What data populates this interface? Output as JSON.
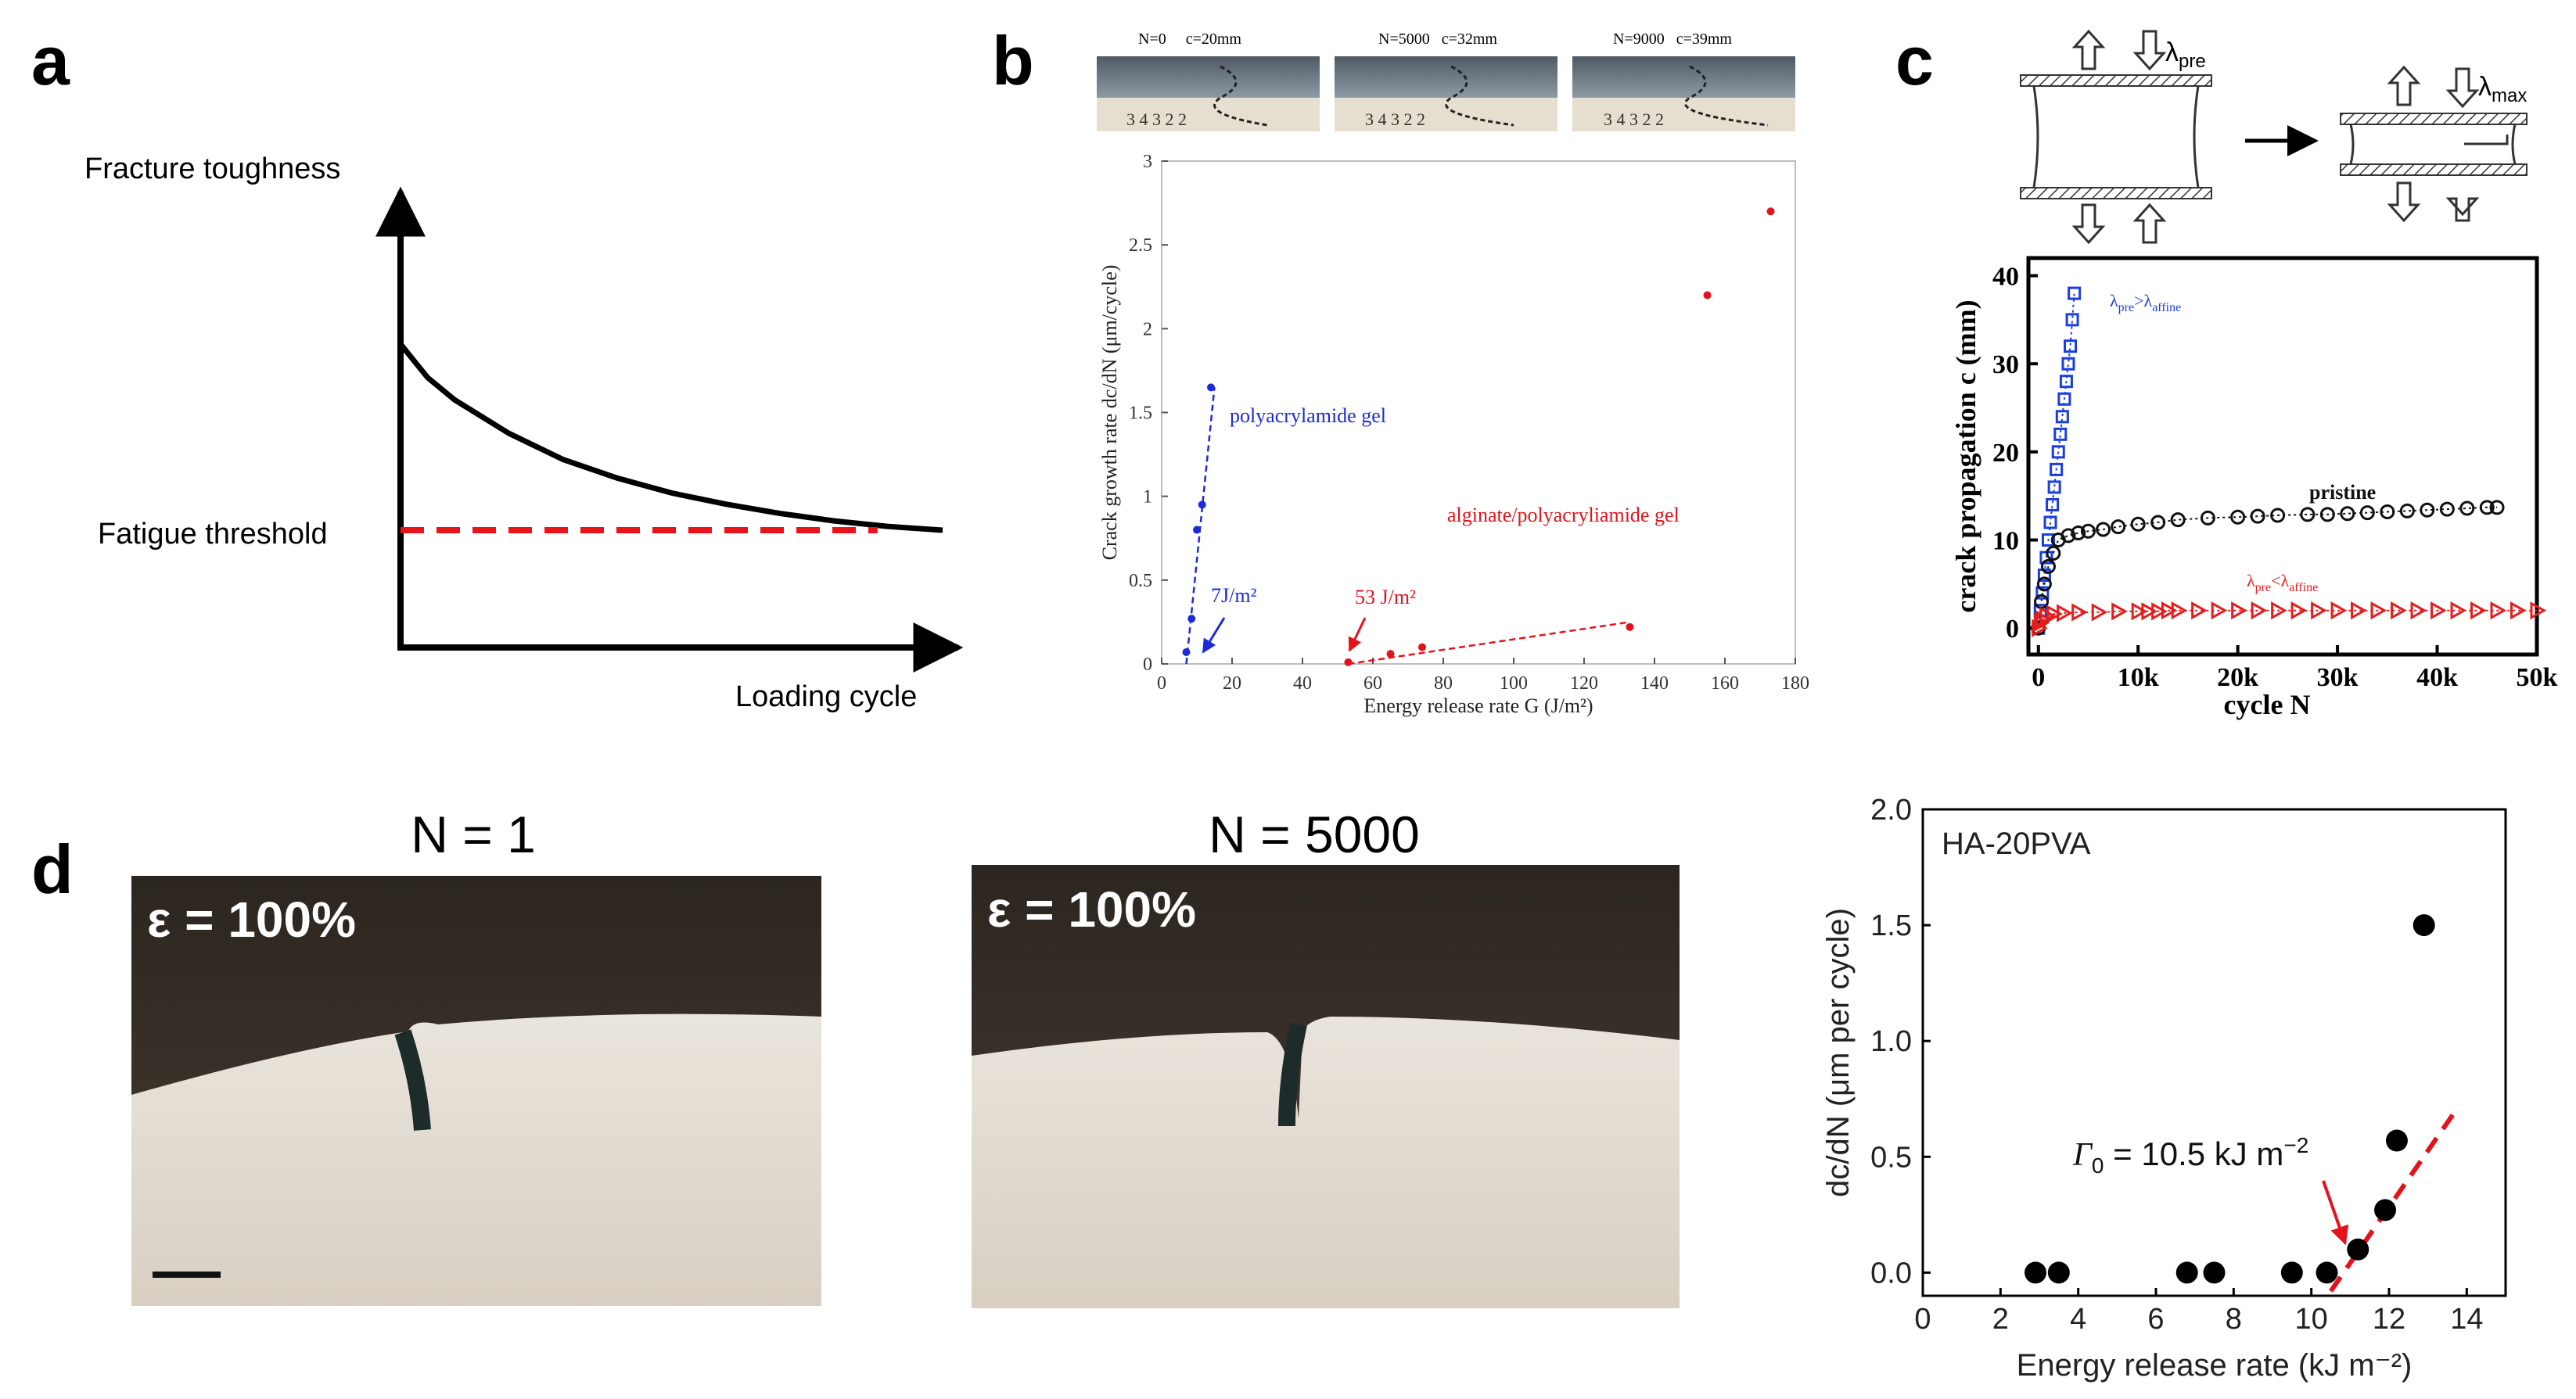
{
  "panels": {
    "a": {
      "letter": "a",
      "y_axis_label": "Fracture toughness",
      "x_axis_label": "Loading cycle",
      "threshold_label": "Fatigue threshold",
      "colors": {
        "curve": "#000000",
        "threshold": "#e8141a"
      }
    },
    "b": {
      "letter": "b",
      "photo_captions": [
        "N=0     c=20mm",
        "N=5000   c=32mm",
        "N=9000   c=39mm"
      ],
      "annotations": {
        "polyacrylamide": "polyacrylamide gel",
        "alginate": "alginate/polyacryliamide gel",
        "threshold_blue": "7J/m²",
        "threshold_red": "53 J/m²"
      },
      "colors": {
        "blue": "#1d2bd6",
        "red": "#e3121b"
      }
    },
    "c": {
      "letter": "c",
      "schematic": {
        "lambda_pre": "λpre",
        "lambda_max": "λmax"
      },
      "legend": {
        "blue": "λpre>λaffine",
        "black": "pristine",
        "red": "λpre<λaffine"
      },
      "colors": {
        "blue": "#1b3de0",
        "black": "#111111",
        "red": "#e51d1d"
      }
    },
    "d": {
      "letter": "d",
      "photo_titles": [
        "N = 1",
        "N = 5000"
      ],
      "strain_labels": [
        "ε = 100%",
        "ε = 100%"
      ],
      "inset_label": "HA-20PVA",
      "annotation": "Γ0 = 10.5 kJ m⁻²",
      "colors": {
        "points": "#000000",
        "fit": "#e3121b",
        "arrow": "#e3121b"
      }
    }
  },
  "chart_data": [
    {
      "id": "panel-a",
      "type": "line",
      "title": "",
      "xlabel": "Loading cycle",
      "ylabel": "Fracture toughness",
      "series": [
        {
          "name": "fracture-toughness",
          "x": [
            0,
            0.05,
            0.1,
            0.2,
            0.3,
            0.4,
            0.5,
            0.6,
            0.7,
            0.8,
            0.9,
            1.0
          ],
          "y": [
            1.0,
            0.82,
            0.7,
            0.52,
            0.38,
            0.28,
            0.2,
            0.14,
            0.09,
            0.05,
            0.02,
            0.0
          ]
        },
        {
          "name": "fatigue-threshold",
          "x": [
            0,
            0.88
          ],
          "y": [
            0,
            0
          ]
        }
      ],
      "grid": false
    },
    {
      "id": "panel-b",
      "type": "scatter",
      "title": "",
      "xlabel": "Energy release rate G (J/m²)",
      "ylabel": "Crack growth rate dc/dN (μm/cycle)",
      "xlim": [
        0,
        180
      ],
      "ylim": [
        0,
        3
      ],
      "xticks": [
        0,
        20,
        40,
        60,
        80,
        100,
        120,
        140,
        160,
        180
      ],
      "yticks": [
        0,
        0.5,
        1,
        1.5,
        2,
        2.5,
        3
      ],
      "series": [
        {
          "name": "polyacrylamide gel",
          "x": [
            7,
            8.5,
            10,
            11.5,
            14
          ],
          "y": [
            0.07,
            0.27,
            0.8,
            0.95,
            1.65
          ]
        },
        {
          "name": "alginate/polyacryliamide gel",
          "x": [
            53,
            65,
            74,
            133,
            155,
            173
          ],
          "y": [
            0.01,
            0.06,
            0.1,
            0.22,
            2.2,
            2.7
          ]
        }
      ],
      "fits": [
        {
          "name": "polyacrylamide fit",
          "x": [
            7,
            15
          ],
          "y": [
            0.0,
            1.65
          ]
        },
        {
          "name": "alginate fit",
          "x": [
            53,
            133
          ],
          "y": [
            0.0,
            0.25
          ]
        }
      ],
      "grid": false
    },
    {
      "id": "panel-c",
      "type": "scatter",
      "title": "",
      "xlabel": "cycle N",
      "ylabel": "crack propagation c (mm)",
      "xlim": [
        -1000,
        50000
      ],
      "ylim": [
        -3,
        42
      ],
      "xticks": [
        0,
        10000,
        20000,
        30000,
        40000,
        50000
      ],
      "xticklabels": [
        "0",
        "10k",
        "20k",
        "30k",
        "40k",
        "50k"
      ],
      "yticks": [
        0,
        10,
        20,
        30,
        40
      ],
      "series": [
        {
          "name": "λpre>λaffine",
          "x": [
            0,
            200,
            400,
            600,
            800,
            1000,
            1200,
            1400,
            1600,
            1800,
            2000,
            2200,
            2400,
            2600,
            2800,
            3000,
            3200,
            3400,
            3600
          ],
          "y": [
            0,
            2,
            4,
            6,
            8,
            10,
            12,
            14,
            16,
            18,
            20,
            22,
            24,
            26,
            28,
            30,
            32,
            35,
            38
          ]
        },
        {
          "name": "pristine",
          "x": [
            0,
            300,
            600,
            1000,
            1500,
            2000,
            3000,
            4000,
            5000,
            6500,
            8000,
            10000,
            12000,
            14000,
            17000,
            20000,
            22000,
            24000,
            27000,
            29000,
            31000,
            33000,
            35000,
            37000,
            39000,
            41000,
            43000,
            45000,
            46000
          ],
          "y": [
            0,
            3,
            5,
            7,
            8.5,
            10,
            10.5,
            10.8,
            11,
            11.2,
            11.5,
            11.8,
            12,
            12.3,
            12.5,
            12.6,
            12.7,
            12.8,
            12.9,
            12.9,
            13,
            13.1,
            13.2,
            13.3,
            13.4,
            13.5,
            13.6,
            13.7,
            13.7
          ]
        },
        {
          "name": "λpre<λaffine",
          "x": [
            0,
            200,
            400,
            800,
            1500,
            2500,
            4000,
            6000,
            8000,
            10000,
            11000,
            12000,
            13000,
            14000,
            16000,
            18000,
            20000,
            22000,
            24000,
            26000,
            28000,
            30000,
            32000,
            34000,
            36000,
            38000,
            40000,
            42000,
            44000,
            46000,
            48000,
            50000
          ],
          "y": [
            0,
            0.6,
            1.0,
            1.4,
            1.6,
            1.7,
            1.8,
            1.8,
            1.9,
            1.9,
            1.9,
            1.9,
            2.0,
            2.0,
            2.0,
            2.0,
            2.0,
            2.0,
            2.0,
            2.0,
            2.0,
            2.0,
            2.0,
            2.0,
            2.0,
            2.0,
            2.0,
            2.0,
            2.0,
            2.0,
            2.0,
            2.0
          ]
        }
      ],
      "grid": false
    },
    {
      "id": "panel-d",
      "type": "scatter",
      "title": "",
      "xlabel": "Energy release rate (kJ m⁻²)",
      "ylabel": "dc/dN (μm per cycle)",
      "xlim": [
        0,
        15
      ],
      "ylim": [
        -0.1,
        2.0
      ],
      "xticks": [
        0,
        2,
        4,
        6,
        8,
        10,
        12,
        14
      ],
      "yticks": [
        0.0,
        0.5,
        1.0,
        1.5,
        2.0
      ],
      "yticklabels": [
        "0.0",
        "0.5",
        "1.0",
        "1.5",
        "2.0"
      ],
      "series": [
        {
          "name": "HA-20PVA",
          "x": [
            2.9,
            3.5,
            6.8,
            7.5,
            9.5,
            10.4,
            11.2,
            11.9,
            12.2,
            12.9
          ],
          "y": [
            0.0,
            0.0,
            0.0,
            0.0,
            0.0,
            0.0,
            0.1,
            0.27,
            0.57,
            1.5
          ]
        }
      ],
      "fits": [
        {
          "name": "fit",
          "x": [
            10.5,
            13.8
          ],
          "y": [
            -0.08,
            0.72
          ]
        }
      ],
      "grid": false
    }
  ]
}
